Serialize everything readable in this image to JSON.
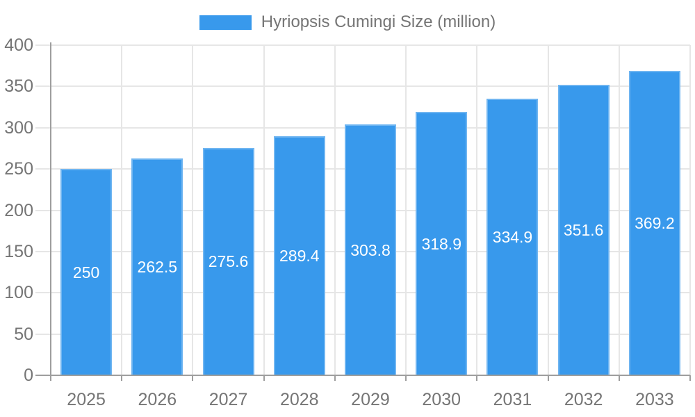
{
  "legend": {
    "label": "Hyriopsis Cumingi Size (million)"
  },
  "chart_data": {
    "type": "bar",
    "title": "Hyriopsis Cumingi Size (million)",
    "categories": [
      "2025",
      "2026",
      "2027",
      "2028",
      "2029",
      "2030",
      "2031",
      "2032",
      "2033"
    ],
    "values": [
      250,
      262.5,
      275.6,
      289.4,
      303.8,
      318.9,
      334.9,
      351.6,
      369.2
    ],
    "xlabel": "",
    "ylabel": "",
    "ylim": [
      0,
      400
    ],
    "ytick_step": 50,
    "yticks": [
      0,
      50,
      100,
      150,
      200,
      250,
      300,
      350,
      400
    ],
    "grid": true,
    "legend_position": "top-center",
    "value_labels": "inside-center",
    "colors": {
      "bar": "#3899EC",
      "value_label": "#FFFFFF",
      "axis_line": "#9E9E9E",
      "grid_line": "#E6E6E6",
      "tick_label": "#757575",
      "legend_text": "#757575",
      "background": "#FFFFFF"
    }
  }
}
